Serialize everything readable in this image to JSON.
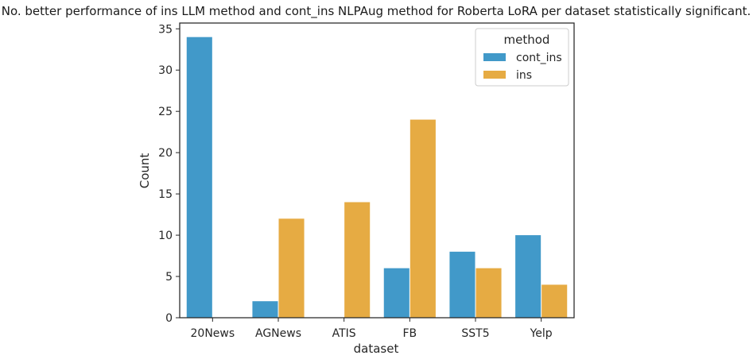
{
  "chart_data": {
    "type": "bar",
    "title": "No. better performance of ins LLM method and cont_ins NLPAug method for Roberta LoRA per dataset statistically significant.",
    "xlabel": "dataset",
    "ylabel": "Count",
    "categories": [
      "20News",
      "AGNews",
      "ATIS",
      "FB",
      "SST5",
      "Yelp"
    ],
    "series": [
      {
        "name": "cont_ins",
        "values": [
          34,
          2,
          0,
          6,
          8,
          10
        ],
        "color": "#4199c9"
      },
      {
        "name": "ins",
        "values": [
          0,
          12,
          14,
          24,
          6,
          4
        ],
        "color": "#e6ab43"
      }
    ],
    "ylim": [
      0,
      35.7
    ],
    "yticks": [
      0,
      5,
      10,
      15,
      20,
      25,
      30,
      35
    ],
    "legend": {
      "title": "method",
      "position": "top-right"
    },
    "grid": false
  }
}
